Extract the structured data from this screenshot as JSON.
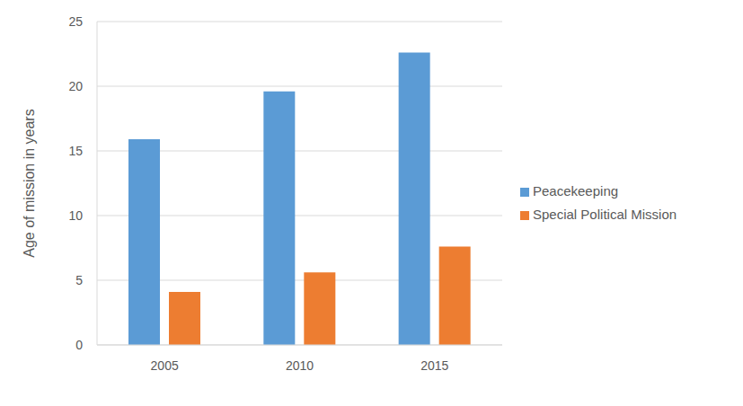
{
  "chart_data": {
    "type": "bar",
    "categories": [
      "2005",
      "2010",
      "2015"
    ],
    "series": [
      {
        "name": "Peacekeeping",
        "color": "#5b9bd5",
        "values": [
          15.9,
          19.6,
          22.6
        ]
      },
      {
        "name": "Special Political Mission",
        "color": "#ed7d31",
        "values": [
          4.1,
          5.6,
          7.6
        ]
      }
    ],
    "y_label": "Age of mission in years",
    "ylim": [
      0,
      25
    ],
    "yticks": [
      0,
      5,
      10,
      15,
      20,
      25
    ],
    "grid": true,
    "legend": "right"
  }
}
